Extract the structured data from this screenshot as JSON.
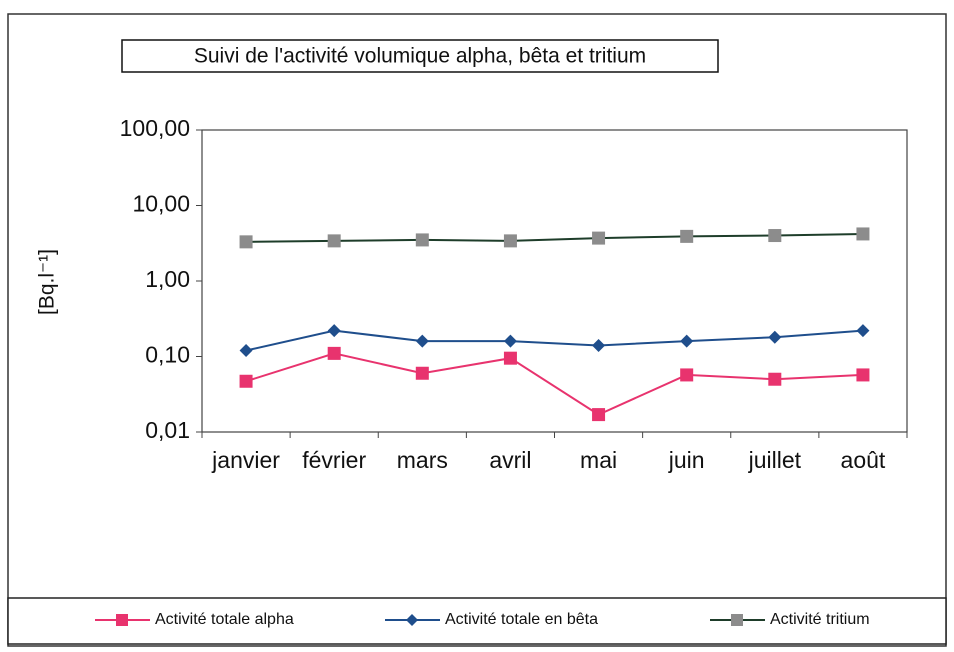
{
  "chart_data": {
    "type": "line",
    "title": "Suivi de l'activité volumique alpha, bêta et tritium",
    "ylabel": "[Bq.l⁻¹]",
    "categories": [
      "janvier",
      "février",
      "mars",
      "avril",
      "mai",
      "juin",
      "juillet",
      "août"
    ],
    "log_y": true,
    "ylim": [
      0.01,
      100
    ],
    "yticks": [
      {
        "value": 100,
        "label": "100,00"
      },
      {
        "value": 10,
        "label": "10,00"
      },
      {
        "value": 1,
        "label": "1,00"
      },
      {
        "value": 0.1,
        "label": "0,10"
      },
      {
        "value": 0.01,
        "label": "0,01"
      }
    ],
    "grid": false,
    "legend": "bottom",
    "series": [
      {
        "name": "Activité totale alpha",
        "color": "#e8336e",
        "marker": "square",
        "marker_color": "#e8336e",
        "values": [
          0.047,
          0.11,
          0.06,
          0.095,
          0.017,
          0.057,
          0.05,
          0.057
        ]
      },
      {
        "name": "Activité totale en bêta",
        "color": "#1f4e8c",
        "marker": "diamond",
        "marker_color": "#1f4e8c",
        "values": [
          0.12,
          0.22,
          0.16,
          0.16,
          0.14,
          0.16,
          0.18,
          0.22
        ]
      },
      {
        "name": "Activité  tritium",
        "color": "#1e3d2a",
        "marker": "square",
        "marker_color": "#8c8c8c",
        "values": [
          3.3,
          3.4,
          3.5,
          3.4,
          3.7,
          3.9,
          4.0,
          4.2
        ]
      }
    ]
  }
}
